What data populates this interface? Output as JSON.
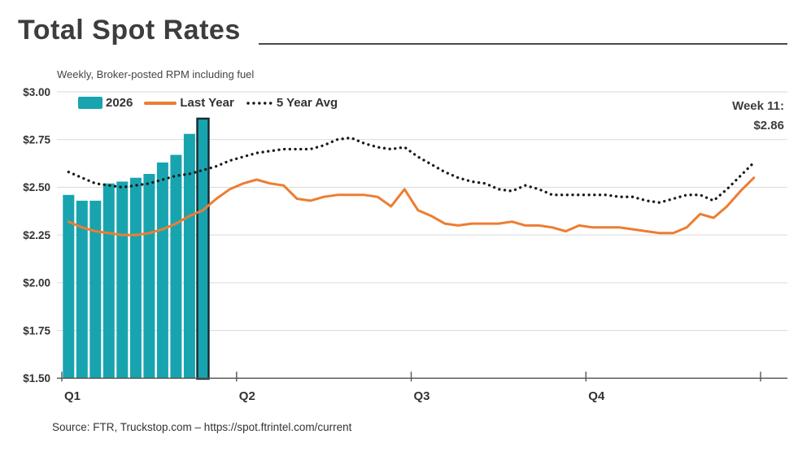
{
  "title": "Total Spot Rates",
  "subtitle": "Weekly, Broker-posted RPM including fuel",
  "source": "Source: FTR, Truckstop.com – https://spot.ftrintel.com/current",
  "annotation": {
    "line1": "Week 11:",
    "line2": "$2.86"
  },
  "legend": {
    "bar": "2026",
    "line": "Last Year",
    "dotted": "5 Year Avg"
  },
  "chart_data": {
    "type": "bar",
    "title": "Total Spot Rates",
    "subtitle": "Weekly, Broker-posted RPM including fuel",
    "xlabel": "",
    "ylabel": "",
    "grid": "horizontal-only",
    "legend_position": "top-left-inside",
    "grid_color": "#D9D9D9",
    "axis_color": "#555555",
    "x_axis": {
      "labels": [
        "Q1",
        "Q2",
        "Q3",
        "Q4"
      ],
      "total_weeks": 52,
      "weeks_per_quarter": 13
    },
    "y_axis": {
      "min": 1.5,
      "max": 3.0,
      "tick_step": 0.25,
      "tick_labels": [
        "$3.00",
        "$2.75",
        "$2.50",
        "$2.25",
        "$2.00",
        "$1.75",
        "$1.50"
      ],
      "tick_values": [
        3.0,
        2.75,
        2.5,
        2.25,
        2.0,
        1.75,
        1.5
      ]
    },
    "annotation": {
      "label": "Week 11:",
      "value": "$2.86",
      "week": 11
    },
    "series": [
      {
        "name": "2026",
        "type": "bar",
        "color": "#18A4AF",
        "highlight_last": true,
        "highlight_outline_color": "#152B33",
        "values": [
          2.46,
          2.43,
          2.43,
          2.52,
          2.53,
          2.55,
          2.57,
          2.63,
          2.67,
          2.78,
          2.86
        ]
      },
      {
        "name": "Last Year",
        "type": "line",
        "color": "#ED7D31",
        "values": [
          2.32,
          2.29,
          2.27,
          2.26,
          2.25,
          2.25,
          2.26,
          2.28,
          2.31,
          2.35,
          2.38,
          2.44,
          2.49,
          2.52,
          2.54,
          2.52,
          2.51,
          2.44,
          2.43,
          2.45,
          2.46,
          2.46,
          2.46,
          2.45,
          2.4,
          2.49,
          2.38,
          2.35,
          2.31,
          2.3,
          2.31,
          2.31,
          2.31,
          2.32,
          2.3,
          2.3,
          2.29,
          2.27,
          2.3,
          2.29,
          2.29,
          2.29,
          2.28,
          2.27,
          2.26,
          2.26,
          2.29,
          2.36,
          2.34,
          2.4,
          2.48,
          2.55
        ]
      },
      {
        "name": "5 Year Avg",
        "type": "dotted-line",
        "color": "#1A1A1A",
        "values": [
          2.58,
          2.55,
          2.52,
          2.51,
          2.5,
          2.51,
          2.52,
          2.54,
          2.56,
          2.57,
          2.59,
          2.61,
          2.64,
          2.66,
          2.68,
          2.69,
          2.7,
          2.7,
          2.7,
          2.72,
          2.75,
          2.76,
          2.73,
          2.71,
          2.7,
          2.71,
          2.66,
          2.62,
          2.58,
          2.55,
          2.53,
          2.52,
          2.49,
          2.48,
          2.51,
          2.49,
          2.46,
          2.46,
          2.46,
          2.46,
          2.46,
          2.45,
          2.45,
          2.43,
          2.42,
          2.44,
          2.46,
          2.46,
          2.43,
          2.49,
          2.56,
          2.63
        ]
      }
    ]
  }
}
